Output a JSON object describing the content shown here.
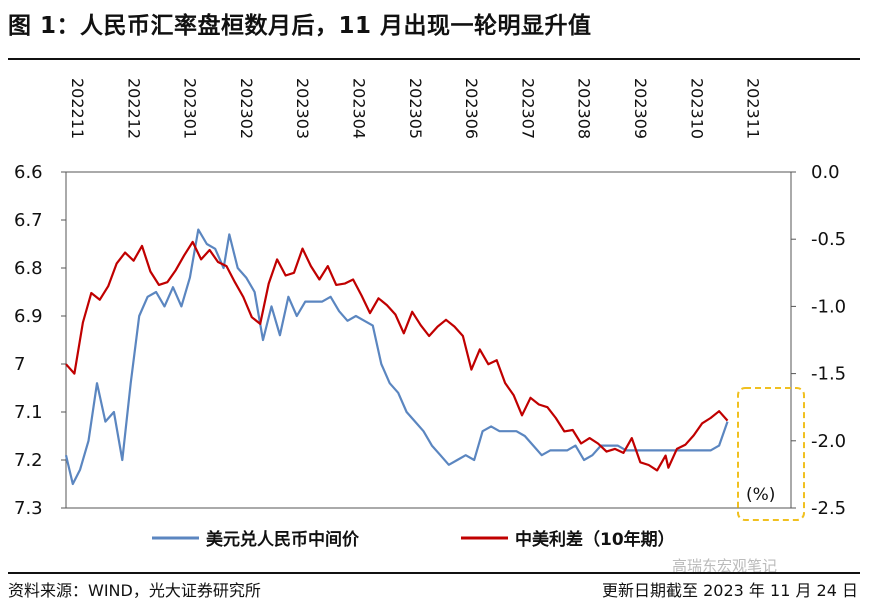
{
  "title": "图 1：人民币汇率盘桓数月后，11 月出现一轮明显升值",
  "footer": {
    "source": "资料来源：WIND，光大证券研究所",
    "updated": "更新日期截至 2023 年 11 月 24 日",
    "watermark": "高瑞东宏观笔记"
  },
  "chart_data": {
    "type": "line",
    "x_ticks": [
      "202211",
      "202212",
      "202301",
      "202302",
      "202303",
      "202304",
      "202305",
      "202306",
      "202307",
      "202308",
      "202309",
      "202310",
      "202311"
    ],
    "y_left": {
      "ticks": [
        "6.6",
        "6.7",
        "6.8",
        "6.9",
        "7",
        "7.1",
        "7.2",
        "7.3"
      ],
      "range": [
        6.6,
        7.3
      ],
      "inverted": true
    },
    "y_right": {
      "ticks": [
        "0.0",
        "-0.5",
        "-1.0",
        "-1.5",
        "-2.0",
        "-2.5"
      ],
      "range": [
        0.0,
        -2.5
      ]
    },
    "annotation": "(%)",
    "highlight_color": "#f0c020",
    "series": [
      {
        "name": "美元兑人民币中间价",
        "axis": "left",
        "color": "#5b86c0",
        "x": [
          0.0,
          0.12,
          0.25,
          0.4,
          0.55,
          0.7,
          0.85,
          1.0,
          1.15,
          1.3,
          1.45,
          1.6,
          1.75,
          1.9,
          2.05,
          2.2,
          2.35,
          2.5,
          2.65,
          2.8,
          2.9,
          3.05,
          3.2,
          3.35,
          3.5,
          3.65,
          3.8,
          3.95,
          4.1,
          4.25,
          4.4,
          4.55,
          4.7,
          4.85,
          5.0,
          5.15,
          5.3,
          5.45,
          5.6,
          5.75,
          5.9,
          6.05,
          6.2,
          6.35,
          6.5,
          6.65,
          6.8,
          6.95,
          7.1,
          7.25,
          7.4,
          7.55,
          7.7,
          7.85,
          8.0,
          8.15,
          8.3,
          8.45,
          8.6,
          8.75,
          8.9,
          9.05,
          9.2,
          9.35,
          9.5,
          9.65,
          9.8,
          9.95,
          10.1,
          10.25,
          10.4,
          10.55,
          10.7,
          10.85,
          11.0,
          11.15,
          11.3,
          11.45,
          11.6,
          11.75
        ],
        "values": [
          7.19,
          7.25,
          7.22,
          7.16,
          7.04,
          7.12,
          7.1,
          7.2,
          7.04,
          6.9,
          6.86,
          6.85,
          6.88,
          6.84,
          6.88,
          6.82,
          6.72,
          6.75,
          6.76,
          6.8,
          6.73,
          6.8,
          6.82,
          6.85,
          6.95,
          6.88,
          6.94,
          6.86,
          6.9,
          6.87,
          6.87,
          6.87,
          6.86,
          6.89,
          6.91,
          6.9,
          6.91,
          6.92,
          7.0,
          7.04,
          7.06,
          7.1,
          7.12,
          7.14,
          7.17,
          7.19,
          7.21,
          7.2,
          7.19,
          7.2,
          7.14,
          7.13,
          7.14,
          7.14,
          7.14,
          7.15,
          7.17,
          7.19,
          7.18,
          7.18,
          7.18,
          7.17,
          7.2,
          7.19,
          7.17,
          7.17,
          7.17,
          7.18,
          7.18,
          7.18,
          7.18,
          7.18,
          7.18,
          7.18,
          7.18,
          7.18,
          7.18,
          7.18,
          7.17,
          7.12
        ]
      },
      {
        "name": "中美利差（10年期）",
        "axis": "right",
        "color": "#c00000",
        "x": [
          0.0,
          0.15,
          0.3,
          0.45,
          0.6,
          0.75,
          0.9,
          1.05,
          1.2,
          1.35,
          1.5,
          1.65,
          1.8,
          1.95,
          2.1,
          2.25,
          2.4,
          2.55,
          2.7,
          2.85,
          3.0,
          3.15,
          3.3,
          3.45,
          3.6,
          3.75,
          3.9,
          4.05,
          4.2,
          4.35,
          4.5,
          4.65,
          4.8,
          4.95,
          5.1,
          5.25,
          5.4,
          5.55,
          5.7,
          5.85,
          6.0,
          6.15,
          6.3,
          6.45,
          6.6,
          6.75,
          6.9,
          7.05,
          7.2,
          7.35,
          7.5,
          7.65,
          7.8,
          7.95,
          8.1,
          8.25,
          8.4,
          8.55,
          8.7,
          8.85,
          9.0,
          9.15,
          9.3,
          9.45,
          9.6,
          9.75,
          9.9,
          10.05,
          10.2,
          10.35,
          10.5,
          10.65,
          10.7,
          10.85,
          11.0,
          11.15,
          11.3,
          11.45,
          11.6,
          11.75
        ],
        "values": [
          -1.43,
          -1.5,
          -1.12,
          -0.9,
          -0.95,
          -0.85,
          -0.68,
          -0.6,
          -0.66,
          -0.55,
          -0.74,
          -0.84,
          -0.82,
          -0.73,
          -0.62,
          -0.52,
          -0.65,
          -0.58,
          -0.67,
          -0.7,
          -0.82,
          -0.93,
          -1.08,
          -1.13,
          -0.83,
          -0.65,
          -0.77,
          -0.75,
          -0.57,
          -0.7,
          -0.8,
          -0.7,
          -0.84,
          -0.83,
          -0.8,
          -0.92,
          -1.05,
          -0.94,
          -0.99,
          -1.06,
          -1.2,
          -1.04,
          -1.14,
          -1.22,
          -1.15,
          -1.1,
          -1.15,
          -1.22,
          -1.47,
          -1.32,
          -1.43,
          -1.4,
          -1.57,
          -1.66,
          -1.81,
          -1.68,
          -1.73,
          -1.75,
          -1.83,
          -1.93,
          -1.92,
          -2.02,
          -1.98,
          -2.02,
          -2.08,
          -2.06,
          -2.09,
          -1.98,
          -2.16,
          -2.18,
          -2.22,
          -2.11,
          -2.2,
          -2.06,
          -2.03,
          -1.96,
          -1.87,
          -1.83,
          -1.78,
          -1.85
        ]
      }
    ]
  }
}
